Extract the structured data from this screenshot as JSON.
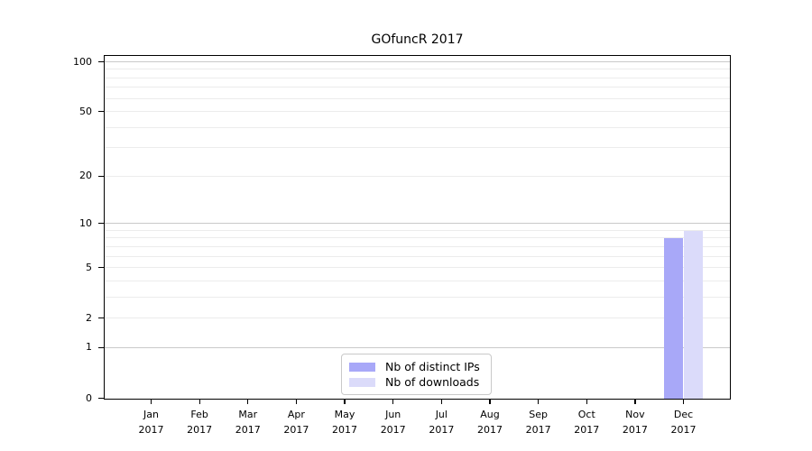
{
  "chart_data": {
    "type": "bar",
    "title": "GOfuncR 2017",
    "categories": [
      "Jan 2017",
      "Feb 2017",
      "Mar 2017",
      "Apr 2017",
      "May 2017",
      "Jun 2017",
      "Jul 2017",
      "Aug 2017",
      "Sep 2017",
      "Oct 2017",
      "Nov 2017",
      "Dec 2017"
    ],
    "series": [
      {
        "name": "Nb of distinct IPs",
        "color": "#a8a8f8",
        "values": [
          0,
          0,
          0,
          0,
          0,
          0,
          0,
          0,
          0,
          0,
          0,
          8
        ]
      },
      {
        "name": "Nb of downloads",
        "color": "#dbdbfa",
        "values": [
          0,
          0,
          0,
          0,
          0,
          0,
          0,
          0,
          0,
          0,
          0,
          9
        ]
      }
    ],
    "xlabel": "",
    "ylabel": "",
    "y_axis": {
      "scale": "log1p",
      "ticks": [
        0,
        1,
        2,
        5,
        10,
        20,
        50,
        100
      ],
      "minor_gridlines": [
        2,
        3,
        4,
        5,
        6,
        7,
        8,
        9,
        20,
        30,
        40,
        50,
        60,
        70,
        80,
        90
      ],
      "major_gridlines": [
        1,
        10,
        100
      ],
      "max": 100
    },
    "grid": true,
    "legend_position": "bottom-center-inside"
  },
  "colors": {
    "background": "#ffffff",
    "spine": "#000000",
    "major_grid": "#c9c9c9",
    "minor_grid": "#ececec",
    "bar_distinct_ips": "#a8a8f8",
    "bar_downloads": "#dbdbfa"
  }
}
